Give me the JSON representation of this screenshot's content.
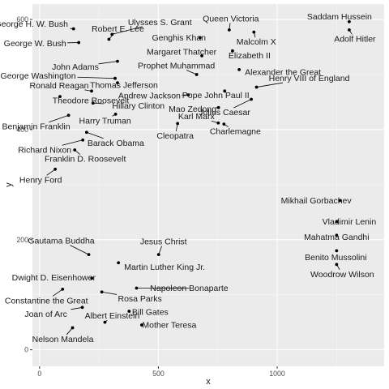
{
  "chart_data": {
    "type": "scatter",
    "title": "",
    "xlabel": "x",
    "ylabel": "y",
    "xlim": [
      -30,
      1450
    ],
    "ylim": [
      -30,
      628
    ],
    "x_ticks": [
      0,
      500,
      1000
    ],
    "y_ticks": [
      0,
      200,
      400,
      600
    ],
    "grid": true,
    "colors": {
      "panel": "#ebebeb",
      "grid_major": "#ffffff",
      "grid_minor": "#f5f5f5",
      "point": "#000000",
      "label": "#1a1a1a"
    },
    "points": [
      {
        "x": 305,
        "y": 573,
        "label": "Ulysses S. Grant"
      },
      {
        "x": 798,
        "y": 581,
        "label": "Queen Victoria"
      },
      {
        "x": 1303,
        "y": 596,
        "label": "Saddam Hussein"
      },
      {
        "x": 143,
        "y": 583,
        "label": "George H. W. Bush"
      },
      {
        "x": 1303,
        "y": 581,
        "label": "Adolf Hitler"
      },
      {
        "x": 902,
        "y": 577,
        "label": "Malcolm X"
      },
      {
        "x": 675,
        "y": 567,
        "label": "Genghis Khan"
      },
      {
        "x": 292,
        "y": 564,
        "label": "Robert E. Lee"
      },
      {
        "x": 165,
        "y": 558,
        "label": "George W. Bush"
      },
      {
        "x": 812,
        "y": 543,
        "label": "Elizabeth II"
      },
      {
        "x": 683,
        "y": 534,
        "label": "Margaret Thatcher"
      },
      {
        "x": 328,
        "y": 524,
        "label": "John Adams"
      },
      {
        "x": 840,
        "y": 509,
        "label": "Alexander the Great"
      },
      {
        "x": 661,
        "y": 500,
        "label": "Prophet Muhammad"
      },
      {
        "x": 318,
        "y": 493,
        "label": "George Washington"
      },
      {
        "x": 328,
        "y": 485,
        "label": "Thomas Jefferson"
      },
      {
        "x": 913,
        "y": 477,
        "label": "Henry VIII of England"
      },
      {
        "x": 219,
        "y": 470,
        "label": "Ronald Reagan"
      },
      {
        "x": 779,
        "y": 470,
        "label": "Pope John Paul II"
      },
      {
        "x": 626,
        "y": 463,
        "label": "Andrew Jackson"
      },
      {
        "x": 86,
        "y": 460,
        "label": "Theodore Roosevelt"
      },
      {
        "x": 891,
        "y": 455,
        "label": "Julius Caesar"
      },
      {
        "x": 225,
        "y": 448,
        "label": "Hillary Clinton"
      },
      {
        "x": 753,
        "y": 440,
        "label": "Mao Zedong"
      },
      {
        "x": 122,
        "y": 426,
        "label": "Benjamin Franklin"
      },
      {
        "x": 320,
        "y": 428,
        "label": "Harry Truman"
      },
      {
        "x": 752,
        "y": 412,
        "label": "Karl Marx"
      },
      {
        "x": 581,
        "y": 411,
        "label": "Cleopatra"
      },
      {
        "x": 776,
        "y": 410,
        "label": "Charlemagne"
      },
      {
        "x": 198,
        "y": 395,
        "label": "Barack Obama"
      },
      {
        "x": 182,
        "y": 381,
        "label": "Richard Nixon"
      },
      {
        "x": 148,
        "y": 363,
        "label": "Franklin D. Roosevelt"
      },
      {
        "x": 66,
        "y": 328,
        "label": "Henry Ford"
      },
      {
        "x": 1263,
        "y": 271,
        "label": "Mikhail Gorbachev"
      },
      {
        "x": 1252,
        "y": 233,
        "label": "Vladimir Lenin"
      },
      {
        "x": 1250,
        "y": 208,
        "label": "Mahatma Gandhi"
      },
      {
        "x": 1250,
        "y": 180,
        "label": "Benito Mussolini"
      },
      {
        "x": 1250,
        "y": 155,
        "label": "Woodrow Wilson"
      },
      {
        "x": 207,
        "y": 173,
        "label": "Gautama Buddha"
      },
      {
        "x": 501,
        "y": 173,
        "label": "Jesus Christ"
      },
      {
        "x": 332,
        "y": 158,
        "label": "Martin Luther King Jr."
      },
      {
        "x": 220,
        "y": 130,
        "label": "Dwight D. Eisenhower"
      },
      {
        "x": 408,
        "y": 112,
        "label": "Napoleon Bonaparte"
      },
      {
        "x": 97,
        "y": 110,
        "label": "Constantine the Great"
      },
      {
        "x": 262,
        "y": 105,
        "label": "Rosa Parks"
      },
      {
        "x": 180,
        "y": 77,
        "label": "Joan of Arc"
      },
      {
        "x": 377,
        "y": 70,
        "label": "Bill Gates"
      },
      {
        "x": 275,
        "y": 50,
        "label": "Albert Einstein"
      },
      {
        "x": 430,
        "y": 45,
        "label": "Mother Teresa"
      },
      {
        "x": 139,
        "y": 40,
        "label": "Nelson Mandela"
      }
    ]
  }
}
